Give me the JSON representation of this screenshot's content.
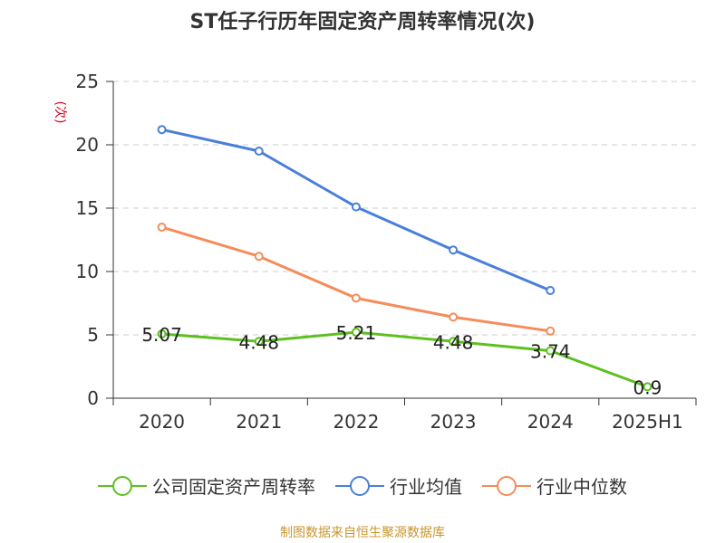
{
  "chart_data": {
    "type": "line",
    "title": "ST任子行历年固定资产周转率情况(次)",
    "ylabel": "(次)",
    "xlabel": "",
    "categories": [
      "2020",
      "2021",
      "2022",
      "2023",
      "2024",
      "2025H1"
    ],
    "ylim": [
      0,
      25
    ],
    "yticks": [
      0,
      5,
      10,
      15,
      20,
      25
    ],
    "grid": true,
    "legend_position": "bottom",
    "series": [
      {
        "name": "公司固定资产周转率",
        "color": "#5cc01f",
        "values": [
          5.07,
          4.48,
          5.21,
          4.48,
          3.74,
          0.9
        ],
        "labels": [
          "5.07",
          "4.48",
          "5.21",
          "4.48",
          "3.74",
          "0.9"
        ]
      },
      {
        "name": "行业均值",
        "color": "#4a7fd9",
        "values": [
          21.2,
          19.5,
          15.1,
          11.7,
          8.5,
          null
        ]
      },
      {
        "name": "行业中位数",
        "color": "#f58c5a",
        "values": [
          13.5,
          11.2,
          7.9,
          6.4,
          5.3,
          null
        ]
      }
    ],
    "source": "制图数据来自恒生聚源数据库"
  }
}
